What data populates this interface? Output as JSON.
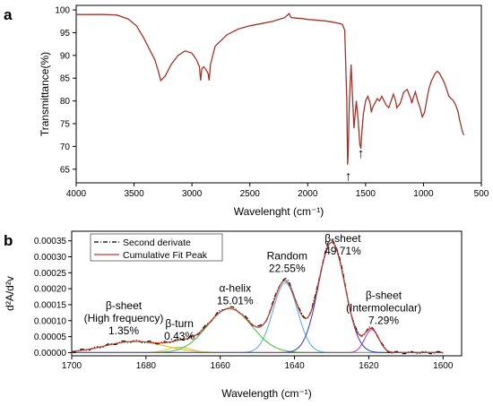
{
  "chart_data": [
    {
      "type": "line",
      "panel_label": "a",
      "xlabel": "Wavelenght (cm⁻¹)",
      "ylabel": "Transmittance(%)",
      "xlim": [
        4000,
        500
      ],
      "ylim": [
        62,
        101
      ],
      "x_ticks": [
        4000,
        3500,
        3000,
        2500,
        2000,
        1500,
        1000,
        500
      ],
      "y_ticks": [
        65,
        70,
        75,
        80,
        85,
        90,
        95,
        100
      ],
      "series": [
        {
          "color": "#a0342a",
          "x": [
            4000,
            3900,
            3750,
            3650,
            3550,
            3480,
            3420,
            3360,
            3320,
            3290,
            3270,
            3230,
            3180,
            3120,
            3060,
            3000,
            2960,
            2935,
            2925,
            2915,
            2900,
            2880,
            2860,
            2852,
            2840,
            2800,
            2700,
            2600,
            2500,
            2400,
            2300,
            2200,
            2160,
            2150,
            2140,
            2100,
            2050,
            2000,
            1950,
            1900,
            1850,
            1800,
            1760,
            1720,
            1700,
            1680,
            1662,
            1655,
            1650,
            1640,
            1625,
            1610,
            1600,
            1590,
            1580,
            1565,
            1550,
            1541,
            1535,
            1520,
            1500,
            1480,
            1460,
            1450,
            1440,
            1420,
            1400,
            1380,
            1360,
            1340,
            1320,
            1300,
            1280,
            1260,
            1240,
            1230,
            1200,
            1170,
            1140,
            1110,
            1100,
            1090,
            1070,
            1050,
            1030,
            1010,
            990,
            970,
            950,
            930,
            900,
            880,
            860,
            840,
            820,
            800,
            780,
            760,
            740,
            720,
            700,
            690,
            680,
            670,
            660,
            650
          ],
          "y": [
            99.0,
            99.0,
            99.0,
            98.9,
            98.0,
            96.5,
            94.0,
            91.0,
            89.0,
            86.5,
            84.5,
            85.5,
            88.0,
            90.0,
            91.0,
            90.5,
            89.0,
            87.5,
            84.5,
            87.0,
            87.5,
            87.0,
            86.0,
            84.5,
            88.0,
            92.0,
            94.5,
            95.8,
            96.5,
            97.0,
            97.5,
            98.3,
            99.2,
            98.6,
            98.3,
            98.2,
            98.1,
            97.9,
            97.8,
            97.7,
            97.6,
            97.4,
            97.2,
            97.0,
            96.8,
            95.5,
            80.0,
            66.0,
            69.0,
            80.0,
            88.0,
            79.0,
            74.0,
            77.0,
            80.0,
            76.0,
            70.5,
            69.5,
            72.0,
            77.0,
            80.0,
            81.0,
            79.5,
            77.5,
            78.5,
            79.5,
            80.5,
            80.0,
            81.0,
            80.0,
            79.0,
            78.5,
            80.0,
            81.5,
            80.0,
            78.5,
            79.5,
            82.0,
            82.5,
            80.5,
            79.5,
            80.5,
            82.0,
            80.0,
            78.5,
            76.5,
            77.5,
            80.5,
            83.0,
            84.5,
            86.0,
            86.5,
            86.0,
            85.0,
            84.0,
            82.5,
            81.0,
            80.5,
            80.0,
            79.0,
            77.5,
            76.0,
            75.0,
            74.0,
            73.0,
            72.5
          ]
        }
      ],
      "annotations": [
        {
          "text": "↑",
          "x": 1650,
          "y": 62.5
        },
        {
          "text": "↑",
          "x": 1541,
          "y": 67.5
        }
      ]
    },
    {
      "type": "line",
      "panel_label": "b",
      "xlabel": "Wavelength (cm⁻¹)",
      "ylabel": "d²A/d²v",
      "xlim": [
        1700,
        1595
      ],
      "ylim": [
        -1e-05,
        0.00038
      ],
      "x_ticks": [
        1700,
        1680,
        1660,
        1640,
        1620,
        1600
      ],
      "y_ticks": [
        "0.00000",
        "0.00005",
        "0.00010",
        "0.00015",
        "0.00020",
        "0.00025",
        "0.00030",
        "0.00035"
      ],
      "legend_position": "top-left",
      "series": [
        {
          "name": "Second derivate",
          "color": "#000000",
          "style": "dash-dot"
        },
        {
          "name": "Cumulative Fit Peak",
          "color": "#c0392b",
          "style": "solid"
        }
      ],
      "components": [
        {
          "center": 1683,
          "height": 3.5e-05,
          "width": 8.0,
          "color": "#c8c800"
        },
        {
          "center": 1671,
          "height": 1.7e-05,
          "width": 3.2,
          "color": "#e0c040"
        },
        {
          "center": 1657.5,
          "height": 0.000138,
          "width": 6.0,
          "color": "#44bb33"
        },
        {
          "center": 1642.5,
          "height": 0.000218,
          "width": 3.3,
          "color": "#55aadd"
        },
        {
          "center": 1630,
          "height": 0.000345,
          "width": 3.6,
          "color": "#3333bb"
        },
        {
          "center": 1619.2,
          "height": 7.2e-05,
          "width": 1.9,
          "color": "#aa33bb"
        }
      ],
      "peak_labels": [
        {
          "lines": [
            "β-sheet",
            "(High frequency)",
            "1.35%"
          ],
          "x": 1686,
          "y": 5.8e-05
        },
        {
          "lines": [
            "β-turn",
            "0.43%"
          ],
          "x": 1671,
          "y": 4e-05
        },
        {
          "lines": [
            "α-helix",
            "15.01%"
          ],
          "x": 1656,
          "y": 0.000152
        },
        {
          "lines": [
            "Random",
            "22.55%"
          ],
          "x": 1642,
          "y": 0.000252
        },
        {
          "lines": [
            "β-sheet",
            "49.71%"
          ],
          "x": 1627,
          "y": 0.000307
        },
        {
          "lines": [
            "β-sheet",
            "(Intermolecular)",
            "7.29%"
          ],
          "x": 1616,
          "y": 9e-05
        }
      ]
    }
  ]
}
